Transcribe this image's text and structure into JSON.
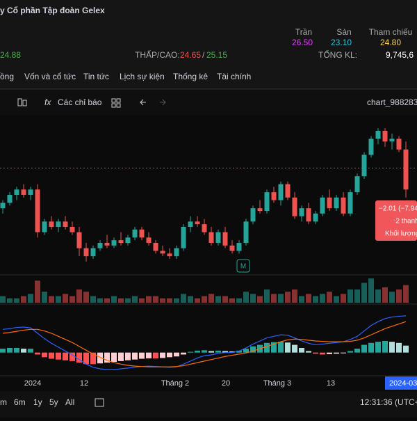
{
  "header": {
    "company": "y Cổ phần Tập đoàn Gelex",
    "ceiling_label": "Trần",
    "floor_label": "Sàn",
    "ref_label": "Tham chiếu",
    "ceiling": "26.50",
    "floor": "23.10",
    "ref": "24.80",
    "price": "24.88",
    "lowhigh_label": "THẤP/CAO:",
    "low": "24.65",
    "sep": "/",
    "high": "25.15",
    "total_label": "TỔNG KL:",
    "total": "9,745,6"
  },
  "tabs": [
    "ồng",
    "Vốn và cổ tức",
    "Tin tức",
    "Lịch sự kiện",
    "Thống kê",
    "Tài chính"
  ],
  "toolbar": {
    "indicators": "Các chỉ báo",
    "chart_name": "chart_988283"
  },
  "tooltip": [
    "−2.01 (−7.94",
    "-2 thanh",
    "Khối lượng"
  ],
  "time_labels": [
    "2024",
    "12",
    "Tháng 2",
    "20",
    "Tháng 3",
    "13"
  ],
  "time_cursor": "2024-03-",
  "ranges": [
    "m",
    "6m",
    "1y",
    "5y",
    "All"
  ],
  "clock": "12:31:36 (UTC+",
  "marker": "M",
  "chart_data": {
    "type": "candlestick",
    "up_color": "#26a69a",
    "down_color": "#ef5350",
    "ylim": [
      20.8,
      26.8
    ],
    "reference_price": 24.8,
    "ohlc": [
      [
        23.3,
        23.6,
        23.1,
        23.5
      ],
      [
        23.5,
        23.9,
        23.4,
        23.8
      ],
      [
        23.8,
        24.1,
        23.6,
        24.0
      ],
      [
        24.0,
        24.2,
        23.7,
        23.8
      ],
      [
        23.8,
        24.1,
        23.6,
        24.0
      ],
      [
        24.0,
        24.2,
        22.2,
        22.4
      ],
      [
        22.4,
        22.9,
        22.3,
        22.8
      ],
      [
        22.8,
        23.0,
        22.5,
        22.6
      ],
      [
        22.6,
        22.9,
        22.4,
        22.8
      ],
      [
        22.8,
        23.0,
        22.5,
        22.6
      ],
      [
        22.6,
        22.8,
        22.3,
        22.4
      ],
      [
        22.4,
        22.6,
        21.5,
        21.8
      ],
      [
        21.8,
        22.0,
        21.3,
        21.5
      ],
      [
        21.5,
        21.9,
        21.4,
        21.8
      ],
      [
        21.8,
        22.1,
        21.7,
        22.0
      ],
      [
        22.0,
        22.3,
        21.8,
        21.9
      ],
      [
        21.9,
        22.2,
        21.8,
        22.1
      ],
      [
        22.1,
        22.4,
        21.9,
        22.0
      ],
      [
        22.0,
        22.3,
        21.9,
        22.2
      ],
      [
        22.2,
        22.6,
        22.1,
        22.5
      ],
      [
        22.5,
        22.6,
        22.1,
        22.2
      ],
      [
        22.2,
        22.4,
        21.9,
        22.0
      ],
      [
        22.0,
        22.1,
        21.6,
        21.7
      ],
      [
        21.7,
        21.9,
        21.5,
        21.6
      ],
      [
        21.6,
        21.8,
        21.4,
        21.5
      ],
      [
        21.5,
        21.9,
        21.4,
        21.8
      ],
      [
        21.8,
        22.7,
        21.7,
        22.6
      ],
      [
        22.6,
        23.0,
        22.4,
        22.8
      ],
      [
        22.8,
        23.0,
        22.6,
        22.7
      ],
      [
        22.7,
        22.9,
        22.3,
        22.4
      ],
      [
        22.4,
        22.6,
        21.9,
        22.0
      ],
      [
        22.0,
        22.5,
        21.9,
        22.4
      ],
      [
        22.4,
        22.6,
        21.8,
        21.9
      ],
      [
        21.9,
        22.1,
        21.6,
        21.7
      ],
      [
        21.7,
        22.1,
        21.6,
        22.0
      ],
      [
        22.0,
        22.9,
        21.9,
        22.8
      ],
      [
        22.8,
        23.4,
        22.7,
        23.3
      ],
      [
        23.3,
        23.6,
        23.1,
        23.2
      ],
      [
        23.2,
        24.0,
        23.1,
        23.9
      ],
      [
        23.9,
        24.1,
        23.5,
        23.6
      ],
      [
        23.6,
        24.3,
        23.4,
        24.2
      ],
      [
        24.2,
        24.3,
        23.6,
        23.7
      ],
      [
        23.7,
        23.9,
        22.9,
        23.0
      ],
      [
        23.0,
        23.4,
        22.8,
        23.3
      ],
      [
        23.3,
        23.5,
        22.7,
        22.8
      ],
      [
        22.8,
        23.2,
        22.7,
        23.1
      ],
      [
        23.1,
        23.8,
        23.0,
        23.7
      ],
      [
        23.7,
        24.0,
        23.2,
        23.3
      ],
      [
        23.3,
        23.8,
        23.2,
        23.7
      ],
      [
        23.7,
        23.9,
        23.0,
        23.1
      ],
      [
        23.1,
        24.0,
        23.0,
        23.9
      ],
      [
        23.9,
        24.6,
        23.8,
        24.5
      ],
      [
        24.5,
        25.4,
        24.4,
        25.3
      ],
      [
        25.3,
        26.0,
        25.2,
        25.9
      ],
      [
        25.9,
        26.3,
        25.7,
        26.2
      ],
      [
        26.2,
        26.3,
        25.6,
        25.8
      ],
      [
        25.8,
        26.1,
        25.5,
        25.9
      ],
      [
        25.9,
        26.0,
        25.4,
        25.5
      ],
      [
        25.5,
        25.8,
        23.7,
        24.0
      ]
    ],
    "volume_lim": [
      0,
      12
    ],
    "volume": [
      3,
      2,
      2,
      3,
      4,
      10,
      5,
      3,
      3,
      4,
      3,
      6,
      5,
      3,
      2,
      2,
      3,
      2,
      2,
      3,
      2,
      3,
      3,
      2,
      2,
      2,
      4,
      3,
      2,
      3,
      4,
      3,
      3,
      2,
      2,
      5,
      4,
      3,
      6,
      4,
      4,
      5,
      6,
      3,
      4,
      3,
      4,
      5,
      3,
      4,
      6,
      6,
      9,
      11,
      6,
      7,
      5,
      6,
      8
    ],
    "macd_lim": [
      -0.6,
      1.2
    ],
    "macd_hist": [
      0.1,
      0.12,
      0.12,
      0.1,
      0.1,
      -0.05,
      -0.12,
      -0.16,
      -0.18,
      -0.2,
      -0.22,
      -0.26,
      -0.3,
      -0.3,
      -0.28,
      -0.26,
      -0.24,
      -0.22,
      -0.2,
      -0.18,
      -0.16,
      -0.15,
      -0.15,
      -0.14,
      -0.12,
      -0.1,
      -0.05,
      0.02,
      0.05,
      0.06,
      0.04,
      0.05,
      0.04,
      0.03,
      0.05,
      0.1,
      0.16,
      0.2,
      0.25,
      0.27,
      0.28,
      0.26,
      0.2,
      0.12,
      0.04,
      -0.03,
      -0.05,
      -0.04,
      -0.03,
      -0.02,
      0.04,
      0.1,
      0.2,
      0.25,
      0.28,
      0.3,
      0.28,
      0.25,
      0.18
    ],
    "macd": [
      0.6,
      0.62,
      0.65,
      0.66,
      0.64,
      0.5,
      0.36,
      0.24,
      0.14,
      0.04,
      -0.06,
      -0.18,
      -0.3,
      -0.38,
      -0.42,
      -0.44,
      -0.44,
      -0.42,
      -0.4,
      -0.38,
      -0.36,
      -0.35,
      -0.36,
      -0.37,
      -0.38,
      -0.37,
      -0.3,
      -0.22,
      -0.14,
      -0.08,
      -0.06,
      -0.02,
      0.0,
      0.0,
      0.04,
      0.12,
      0.22,
      0.3,
      0.38,
      0.42,
      0.46,
      0.45,
      0.38,
      0.3,
      0.24,
      0.2,
      0.22,
      0.24,
      0.26,
      0.28,
      0.34,
      0.42,
      0.56,
      0.7,
      0.8,
      0.88,
      0.92,
      0.94,
      0.95
    ],
    "signal": [
      0.5,
      0.52,
      0.55,
      0.58,
      0.6,
      0.6,
      0.56,
      0.5,
      0.42,
      0.34,
      0.26,
      0.16,
      0.06,
      -0.04,
      -0.12,
      -0.2,
      -0.26,
      -0.3,
      -0.33,
      -0.35,
      -0.36,
      -0.37,
      -0.37,
      -0.37,
      -0.37,
      -0.36,
      -0.34,
      -0.3,
      -0.26,
      -0.22,
      -0.18,
      -0.14,
      -0.1,
      -0.07,
      -0.04,
      -0.01,
      0.04,
      0.1,
      0.16,
      0.22,
      0.28,
      0.33,
      0.35,
      0.34,
      0.32,
      0.3,
      0.29,
      0.28,
      0.28,
      0.28,
      0.29,
      0.32,
      0.38,
      0.46,
      0.54,
      0.62,
      0.68,
      0.74,
      0.8
    ],
    "macd_color": "#2962ff",
    "signal_color": "#ff6d00"
  }
}
